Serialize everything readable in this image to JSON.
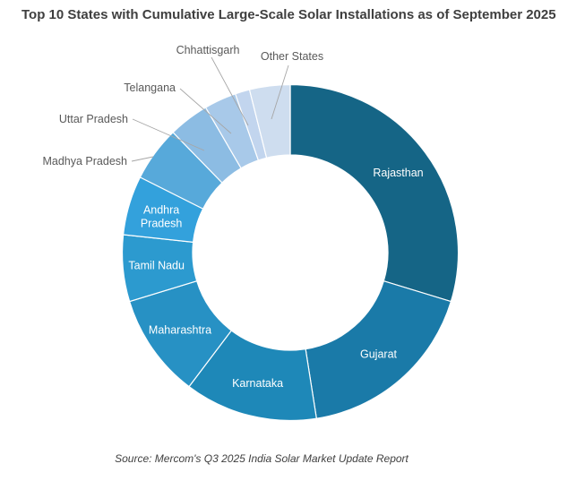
{
  "chart_data": {
    "type": "pie",
    "variant": "donut",
    "title": "Top 10 States with Cumulative Large-Scale Solar Installations as of September 2025",
    "source": "Source: Mercom's Q3 2025 India Solar Market Update Report",
    "legend_position": "none",
    "start_angle_deg": 0,
    "direction": "clockwise",
    "units": "percent share (estimated from segment angles)",
    "slices": [
      {
        "label": "Rajasthan",
        "value_pct": 29.7,
        "color": "#156586",
        "label_placement": "inside"
      },
      {
        "label": "Gujarat",
        "value_pct": 17.8,
        "color": "#1A7AA8",
        "label_placement": "inside"
      },
      {
        "label": "Karnataka",
        "value_pct": 12.8,
        "color": "#1E88B8",
        "label_placement": "inside"
      },
      {
        "label": "Maharashtra",
        "value_pct": 10.0,
        "color": "#2791C4",
        "label_placement": "inside"
      },
      {
        "label": "Tamil Nadu",
        "value_pct": 6.4,
        "color": "#2C9ACF",
        "label_placement": "inside"
      },
      {
        "label": "Andhra Pradesh",
        "value_pct": 5.7,
        "color": "#33A1DC",
        "label_placement": "inside",
        "wrap": true
      },
      {
        "label": "Madhya Pradesh",
        "value_pct": 5.3,
        "color": "#57A9DA",
        "label_placement": "outside"
      },
      {
        "label": "Uttar Pradesh",
        "value_pct": 3.9,
        "color": "#8CBCE3",
        "label_placement": "outside"
      },
      {
        "label": "Telangana",
        "value_pct": 3.1,
        "color": "#A8C9E9",
        "label_placement": "outside"
      },
      {
        "label": "Chhattisgarh",
        "value_pct": 1.4,
        "color": "#C2D5EE",
        "label_placement": "outside"
      },
      {
        "label": "Other States",
        "value_pct": 3.9,
        "color": "#CEDDEF",
        "label_placement": "outside"
      }
    ],
    "text_colors": {
      "title": "#3F3F3F",
      "inside_label": "#FFFFFF",
      "outside_label": "#595959",
      "source": "#404040",
      "callout_line": "#A6A6A6"
    }
  }
}
